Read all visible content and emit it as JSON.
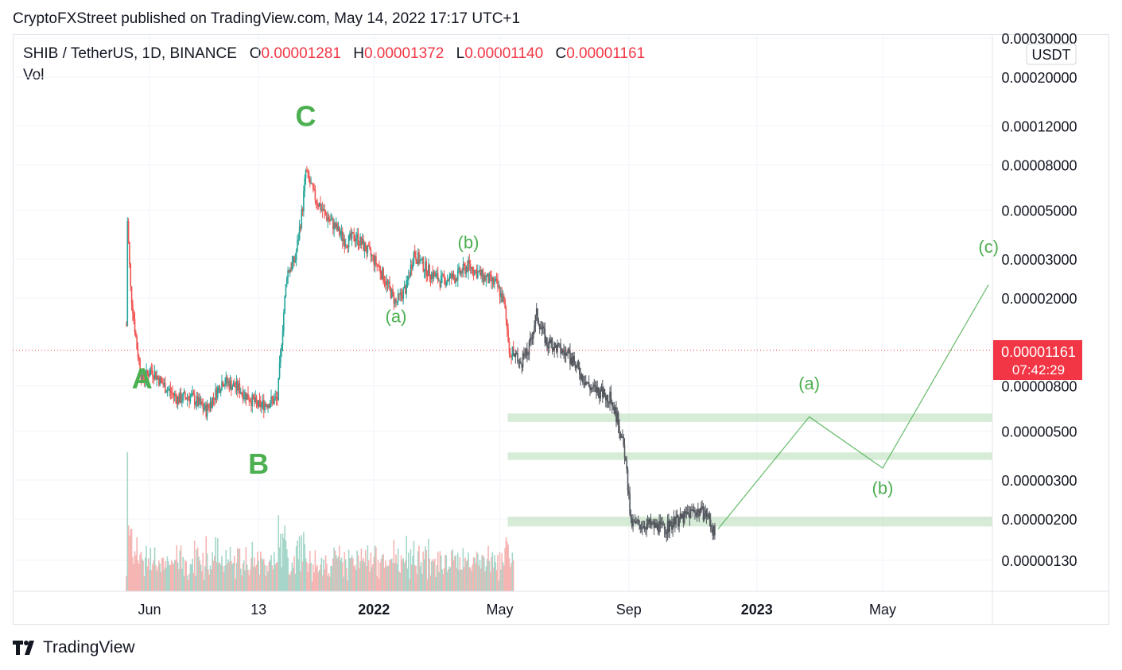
{
  "header": {
    "publisher_line": "CryptoFXStreet published on TradingView.com, May 14, 2022 17:17 UTC+1"
  },
  "legend": {
    "symbol": "SHIB / TetherUS, 1D, BINANCE",
    "o_label": "O",
    "o_value": "0.00001281",
    "h_label": "H",
    "h_value": "0.00001372",
    "l_label": "L",
    "l_value": "0.00001140",
    "c_label": "C",
    "c_value": "0.00001161",
    "vol_label": "Vol"
  },
  "price_scale": {
    "currency": "USDT",
    "current_price": "0.00001161",
    "countdown": "07:42:29"
  },
  "footer": {
    "brand": "TradingView"
  },
  "colors": {
    "up": "#26a69a",
    "down": "#ef5350",
    "projection": "#4caf50",
    "wave_label": "#4caf50",
    "price_tag": "#f23645",
    "zone": "#c8e6c9",
    "forecast_path": "#54585f"
  },
  "chart_data": {
    "type": "candlestick",
    "scale": "log",
    "x_tick_labels": [
      "Jun",
      "13",
      "2022",
      "2022",
      "May",
      "Sep",
      "2023",
      "May"
    ],
    "x_tick_dates": [
      "2021-06-01",
      "2021-09-13",
      "2022-01-01",
      "2022-01-01",
      "2022-05-01",
      "2022-09-01",
      "2023-01-01",
      "2023-05-01"
    ],
    "y_tick_values": [
      0.0003,
      0.0002,
      0.00012,
      8e-05,
      5e-05,
      3e-05,
      2e-05,
      8e-06,
      5e-06,
      3e-06,
      2e-06,
      1.3e-06
    ],
    "y_tick_labels": [
      "0.00030000",
      "0.00020000",
      "0.00012000",
      "0.00008000",
      "0.00005000",
      "0.00003000",
      "0.00002000",
      "0.00000800",
      "0.00000500",
      "0.00000300",
      "0.00000200",
      "0.00000130"
    ],
    "price_path": [
      {
        "date": "2021-05-10",
        "price": 1.5e-05
      },
      {
        "date": "2021-05-11",
        "price": 4.5e-05
      },
      {
        "date": "2021-05-14",
        "price": 2.2e-05
      },
      {
        "date": "2021-05-20",
        "price": 1.2e-05
      },
      {
        "date": "2021-05-25",
        "price": 8.5e-06
      },
      {
        "date": "2021-06-03",
        "price": 9.5e-06
      },
      {
        "date": "2021-06-15",
        "price": 8e-06
      },
      {
        "date": "2021-06-28",
        "price": 7e-06
      },
      {
        "date": "2021-07-10",
        "price": 7.2e-06
      },
      {
        "date": "2021-07-25",
        "price": 6.2e-06
      },
      {
        "date": "2021-08-10",
        "price": 8.5e-06
      },
      {
        "date": "2021-08-25",
        "price": 7.8e-06
      },
      {
        "date": "2021-09-13",
        "price": 6.5e-06
      },
      {
        "date": "2021-10-01",
        "price": 7e-06
      },
      {
        "date": "2021-10-05",
        "price": 1.3e-05
      },
      {
        "date": "2021-10-10",
        "price": 2.6e-05
      },
      {
        "date": "2021-10-18",
        "price": 3e-05
      },
      {
        "date": "2021-10-25",
        "price": 5.2e-05
      },
      {
        "date": "2021-10-28",
        "price": 7.5e-05
      },
      {
        "date": "2021-11-05",
        "price": 5.8e-05
      },
      {
        "date": "2021-11-15",
        "price": 4.8e-05
      },
      {
        "date": "2021-11-25",
        "price": 4.2e-05
      },
      {
        "date": "2021-12-05",
        "price": 3.6e-05
      },
      {
        "date": "2021-12-15",
        "price": 3.8e-05
      },
      {
        "date": "2021-12-25",
        "price": 3.3e-05
      },
      {
        "date": "2022-01-05",
        "price": 2.8e-05
      },
      {
        "date": "2022-01-22",
        "price": 1.9e-05
      },
      {
        "date": "2022-02-01",
        "price": 2.25e-05
      },
      {
        "date": "2022-02-08",
        "price": 3.2e-05
      },
      {
        "date": "2022-02-20",
        "price": 2.7e-05
      },
      {
        "date": "2022-03-05",
        "price": 2.4e-05
      },
      {
        "date": "2022-03-20",
        "price": 2.5e-05
      },
      {
        "date": "2022-04-01",
        "price": 2.8e-05
      },
      {
        "date": "2022-04-15",
        "price": 2.5e-05
      },
      {
        "date": "2022-04-28",
        "price": 2.3e-05
      },
      {
        "date": "2022-05-05",
        "price": 1.9e-05
      },
      {
        "date": "2022-05-11",
        "price": 1.1e-05
      },
      {
        "date": "2022-05-14",
        "price": 1.16e-05
      }
    ],
    "forecast_path": [
      {
        "date": "2022-05-14",
        "price": 1.12e-05
      },
      {
        "date": "2022-05-20",
        "price": 1e-05
      },
      {
        "date": "2022-05-28",
        "price": 1.15e-05
      },
      {
        "date": "2022-06-05",
        "price": 1.7e-05
      },
      {
        "date": "2022-06-15",
        "price": 1.25e-05
      },
      {
        "date": "2022-06-25",
        "price": 1.2e-05
      },
      {
        "date": "2022-07-05",
        "price": 1.1e-05
      },
      {
        "date": "2022-07-15",
        "price": 9.5e-06
      },
      {
        "date": "2022-07-25",
        "price": 8e-06
      },
      {
        "date": "2022-08-05",
        "price": 7.5e-06
      },
      {
        "date": "2022-08-15",
        "price": 7e-06
      },
      {
        "date": "2022-08-22",
        "price": 5.5e-06
      },
      {
        "date": "2022-08-28",
        "price": 4e-06
      },
      {
        "date": "2022-09-01",
        "price": 2.5e-06
      },
      {
        "date": "2022-09-03",
        "price": 1.9e-06
      },
      {
        "date": "2022-09-20",
        "price": 1.9e-06
      },
      {
        "date": "2022-10-05",
        "price": 1.8e-06
      },
      {
        "date": "2022-10-20",
        "price": 2e-06
      },
      {
        "date": "2022-11-03",
        "price": 2.2e-06
      },
      {
        "date": "2022-11-15",
        "price": 2.1e-06
      },
      {
        "date": "2022-11-22",
        "price": 1.7e-06
      }
    ],
    "projection": [
      {
        "date": "2022-11-25",
        "price": 1.8e-06
      },
      {
        "date": "2023-02-20",
        "price": 5.8e-06
      },
      {
        "date": "2023-05-01",
        "price": 3.4e-06
      },
      {
        "date": "2023-08-10",
        "price": 2.3e-05
      }
    ],
    "zones": [
      {
        "low": 5.5e-06,
        "high": 6e-06,
        "start": "2022-05-01",
        "end": "2023-08-31"
      },
      {
        "low": 3.7e-06,
        "high": 4e-06,
        "start": "2022-05-01",
        "end": "2023-08-31"
      },
      {
        "low": 1.85e-06,
        "high": 2.05e-06,
        "start": "2022-05-01",
        "end": "2023-08-31"
      }
    ],
    "wave_labels": [
      {
        "text": "A",
        "date": "2021-05-25",
        "price": 7.8e-06,
        "size": "large"
      },
      {
        "text": "B",
        "date": "2021-09-13",
        "price": 3.2e-06,
        "size": "large"
      },
      {
        "text": "C",
        "date": "2021-10-28",
        "price": 0.00012,
        "size": "large"
      },
      {
        "text": "(a)",
        "date": "2022-01-22",
        "price": 1.55e-05,
        "size": "small"
      },
      {
        "text": "(b)",
        "date": "2022-04-01",
        "price": 3.35e-05,
        "size": "small"
      },
      {
        "text": "(a)",
        "date": "2023-02-20",
        "price": 7.7e-06,
        "size": "small"
      },
      {
        "text": "(b)",
        "date": "2023-05-01",
        "price": 2.6e-06,
        "size": "small"
      },
      {
        "text": "(c)",
        "date": "2023-08-10",
        "price": 3.2e-05,
        "size": "small"
      }
    ]
  }
}
